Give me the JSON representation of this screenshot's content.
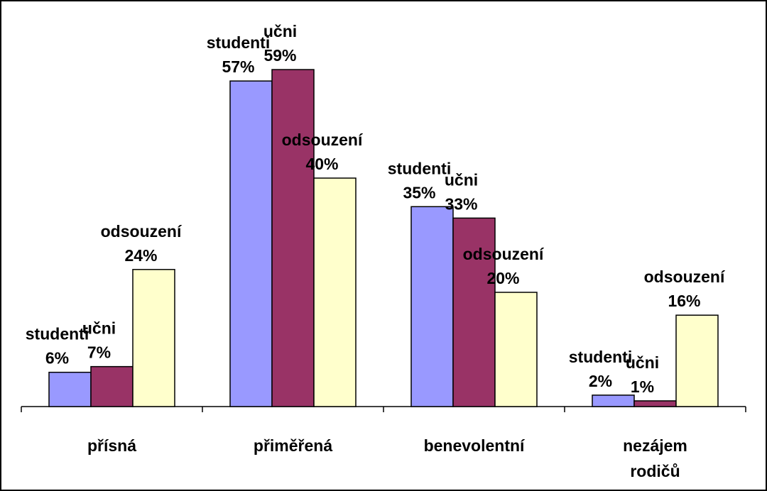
{
  "chart_data": {
    "type": "bar",
    "categories": [
      "přísná",
      "přiměřená",
      "benevolentní",
      "nezájem rodičů"
    ],
    "series": [
      {
        "name": "studenti",
        "color": "#9999ff",
        "values": [
          6,
          57,
          35,
          2
        ],
        "value_labels": [
          "6%",
          "57%",
          "35%",
          "2%"
        ]
      },
      {
        "name": "učni",
        "color": "#993366",
        "values": [
          7,
          59,
          33,
          1
        ],
        "value_labels": [
          "7%",
          "59%",
          "33%",
          "1%"
        ]
      },
      {
        "name": "odsouzení",
        "color": "#ffffcc",
        "values": [
          24,
          40,
          20,
          16
        ],
        "value_labels": [
          "24%",
          "40%",
          "20%",
          "16%"
        ]
      }
    ],
    "ylim": [
      0,
      60
    ]
  }
}
